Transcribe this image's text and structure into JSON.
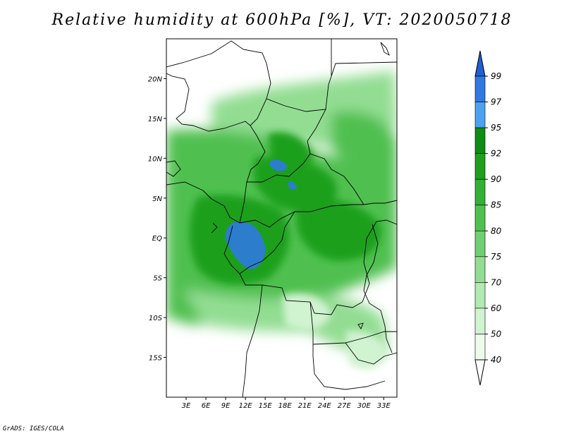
{
  "title": "Relative humidity at 600hPa [%], VT: 2020050718",
  "footer": "GrADS: IGES/COLA",
  "axes": {
    "lat_labels": [
      "20N",
      "15N",
      "10N",
      "5N",
      "EQ",
      "5S",
      "10S",
      "15S"
    ],
    "lat_values": [
      20,
      15,
      10,
      5,
      0,
      -5,
      -10,
      -15
    ],
    "lon_labels": [
      "3E",
      "6E",
      "9E",
      "12E",
      "15E",
      "18E",
      "21E",
      "24E",
      "27E",
      "30E",
      "33E"
    ],
    "lon_values": [
      3,
      6,
      9,
      12,
      15,
      18,
      21,
      24,
      27,
      30,
      33
    ],
    "lon_range": [
      0,
      35
    ],
    "lat_range": [
      -20,
      25
    ]
  },
  "colorbar": {
    "levels": [
      "99",
      "97",
      "95",
      "92",
      "90",
      "85",
      "80",
      "75",
      "70",
      "60",
      "50",
      "40"
    ],
    "colors": [
      "#1e5fd2",
      "#2f79e0",
      "#4ea1f0",
      "#0e8c14",
      "#1ea01e",
      "#34b034",
      "#50c050",
      "#70cf70",
      "#93dd93",
      "#b3e9b3",
      "#d0f3d0",
      "#ecfbec"
    ],
    "top_arrow_color": "#1e5fd2",
    "bottom_arrow_color": "#ffffff"
  },
  "field_palette": {
    "very_humid": "#1ea01e",
    "humid": "#50c050",
    "moist": "#93dd93",
    "dryish": "#d0f3d0",
    "saturated": "#2f79e0"
  }
}
